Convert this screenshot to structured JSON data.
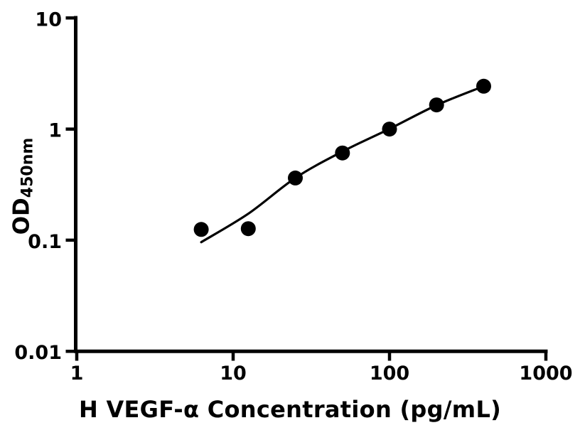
{
  "figure": {
    "background": "#ffffff",
    "ink": "#000000"
  },
  "chart_data": {
    "type": "scatter",
    "title": "",
    "xlabel": "H VEGF-α Concentration (pg/mL)",
    "ylabel_main": "OD",
    "ylabel_sub": "450nm",
    "x_scale": "log",
    "y_scale": "log",
    "xlim": [
      1,
      1000
    ],
    "ylim": [
      0.01,
      10
    ],
    "x_ticks": [
      1,
      10,
      100,
      1000
    ],
    "x_tick_labels": [
      "1",
      "10",
      "100",
      "1000"
    ],
    "y_ticks": [
      10,
      1,
      0.1,
      0.01
    ],
    "y_tick_labels": [
      "10",
      "1",
      "0.1",
      "0.01"
    ],
    "grid": false,
    "legend": null,
    "series": [
      {
        "name": "standard-points",
        "type": "scatter",
        "marker": "circle",
        "color": "#000000",
        "points": [
          {
            "x": 6.25,
            "y": 0.125
          },
          {
            "x": 12.5,
            "y": 0.127
          },
          {
            "x": 25,
            "y": 0.363
          },
          {
            "x": 50,
            "y": 0.61
          },
          {
            "x": 100,
            "y": 1.0
          },
          {
            "x": 200,
            "y": 1.65
          },
          {
            "x": 400,
            "y": 2.43
          }
        ]
      },
      {
        "name": "fit-curve",
        "type": "line",
        "color": "#000000",
        "points": [
          {
            "x": 6.25,
            "y": 0.096
          },
          {
            "x": 12.5,
            "y": 0.173
          },
          {
            "x": 25,
            "y": 0.363
          },
          {
            "x": 50,
            "y": 0.628
          },
          {
            "x": 100,
            "y": 1.005
          },
          {
            "x": 200,
            "y": 1.64
          },
          {
            "x": 400,
            "y": 2.43
          }
        ]
      }
    ]
  }
}
